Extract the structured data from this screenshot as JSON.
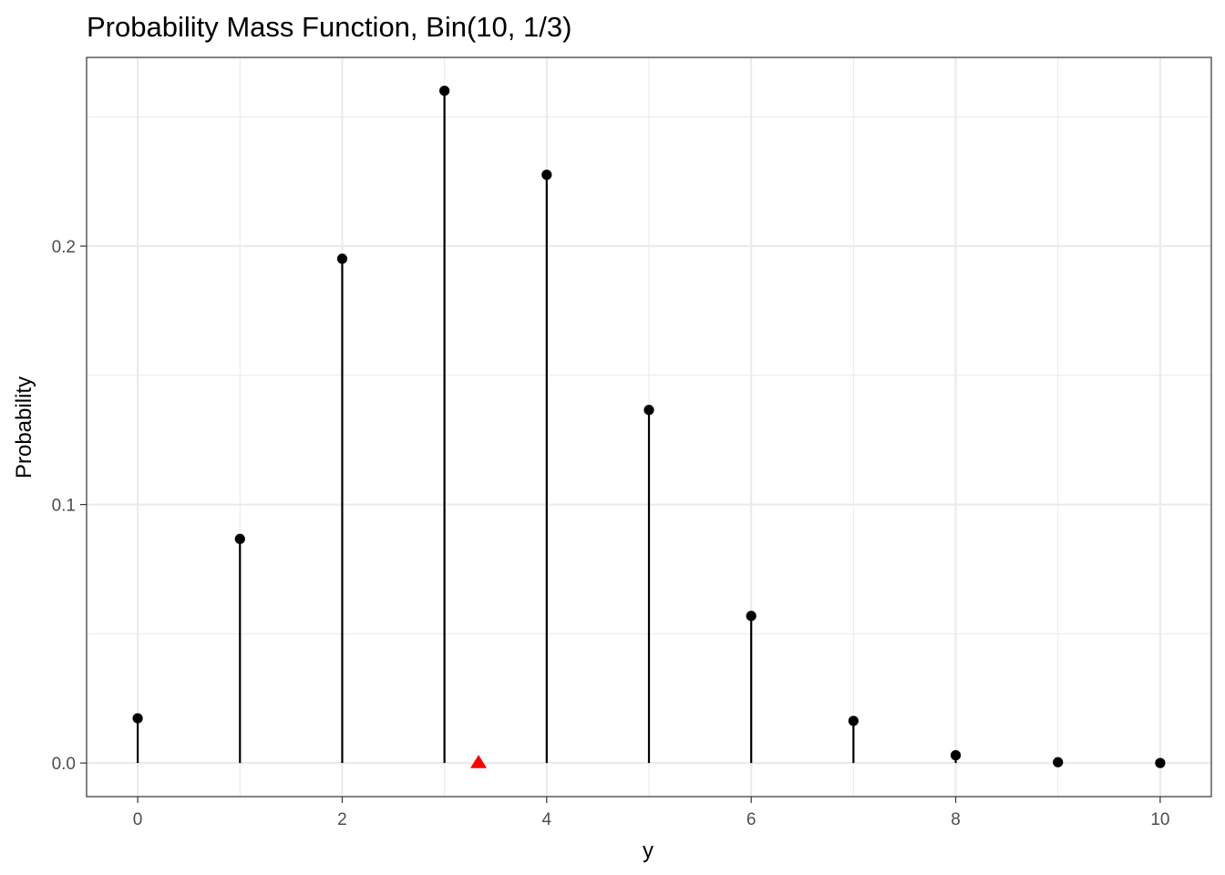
{
  "chart_data": {
    "type": "lollipop",
    "title": "Probability Mass Function, Bin(10, 1/3)",
    "xlabel": "y",
    "ylabel": "Probability",
    "x": [
      0,
      1,
      2,
      3,
      4,
      5,
      6,
      7,
      8,
      9,
      10
    ],
    "y": [
      0.0173,
      0.0867,
      0.1951,
      0.2601,
      0.2276,
      0.1366,
      0.0569,
      0.0163,
      0.003,
      0.0003,
      0.0
    ],
    "xlim": [
      -0.5,
      10.5
    ],
    "ylim": [
      -0.013,
      0.273
    ],
    "x_ticks": [
      0,
      2,
      4,
      6,
      8,
      10
    ],
    "x_tick_labels": [
      "0",
      "2",
      "4",
      "6",
      "8",
      "10"
    ],
    "y_ticks": [
      0.0,
      0.1,
      0.2
    ],
    "y_tick_labels": [
      "0.0",
      "0.1",
      "0.2"
    ],
    "x_minor_ticks": [
      1,
      3,
      5,
      7,
      9
    ],
    "y_minor_ticks": [
      0.05,
      0.15,
      0.25
    ],
    "grid": true,
    "mean_marker": {
      "x": 3.3333,
      "y": 0.0,
      "shape": "triangle",
      "color": "#ff0000"
    },
    "colors": {
      "stem": "#000000",
      "point": "#000000",
      "grid": "#ebebeb",
      "panel_border": "#333333"
    }
  }
}
